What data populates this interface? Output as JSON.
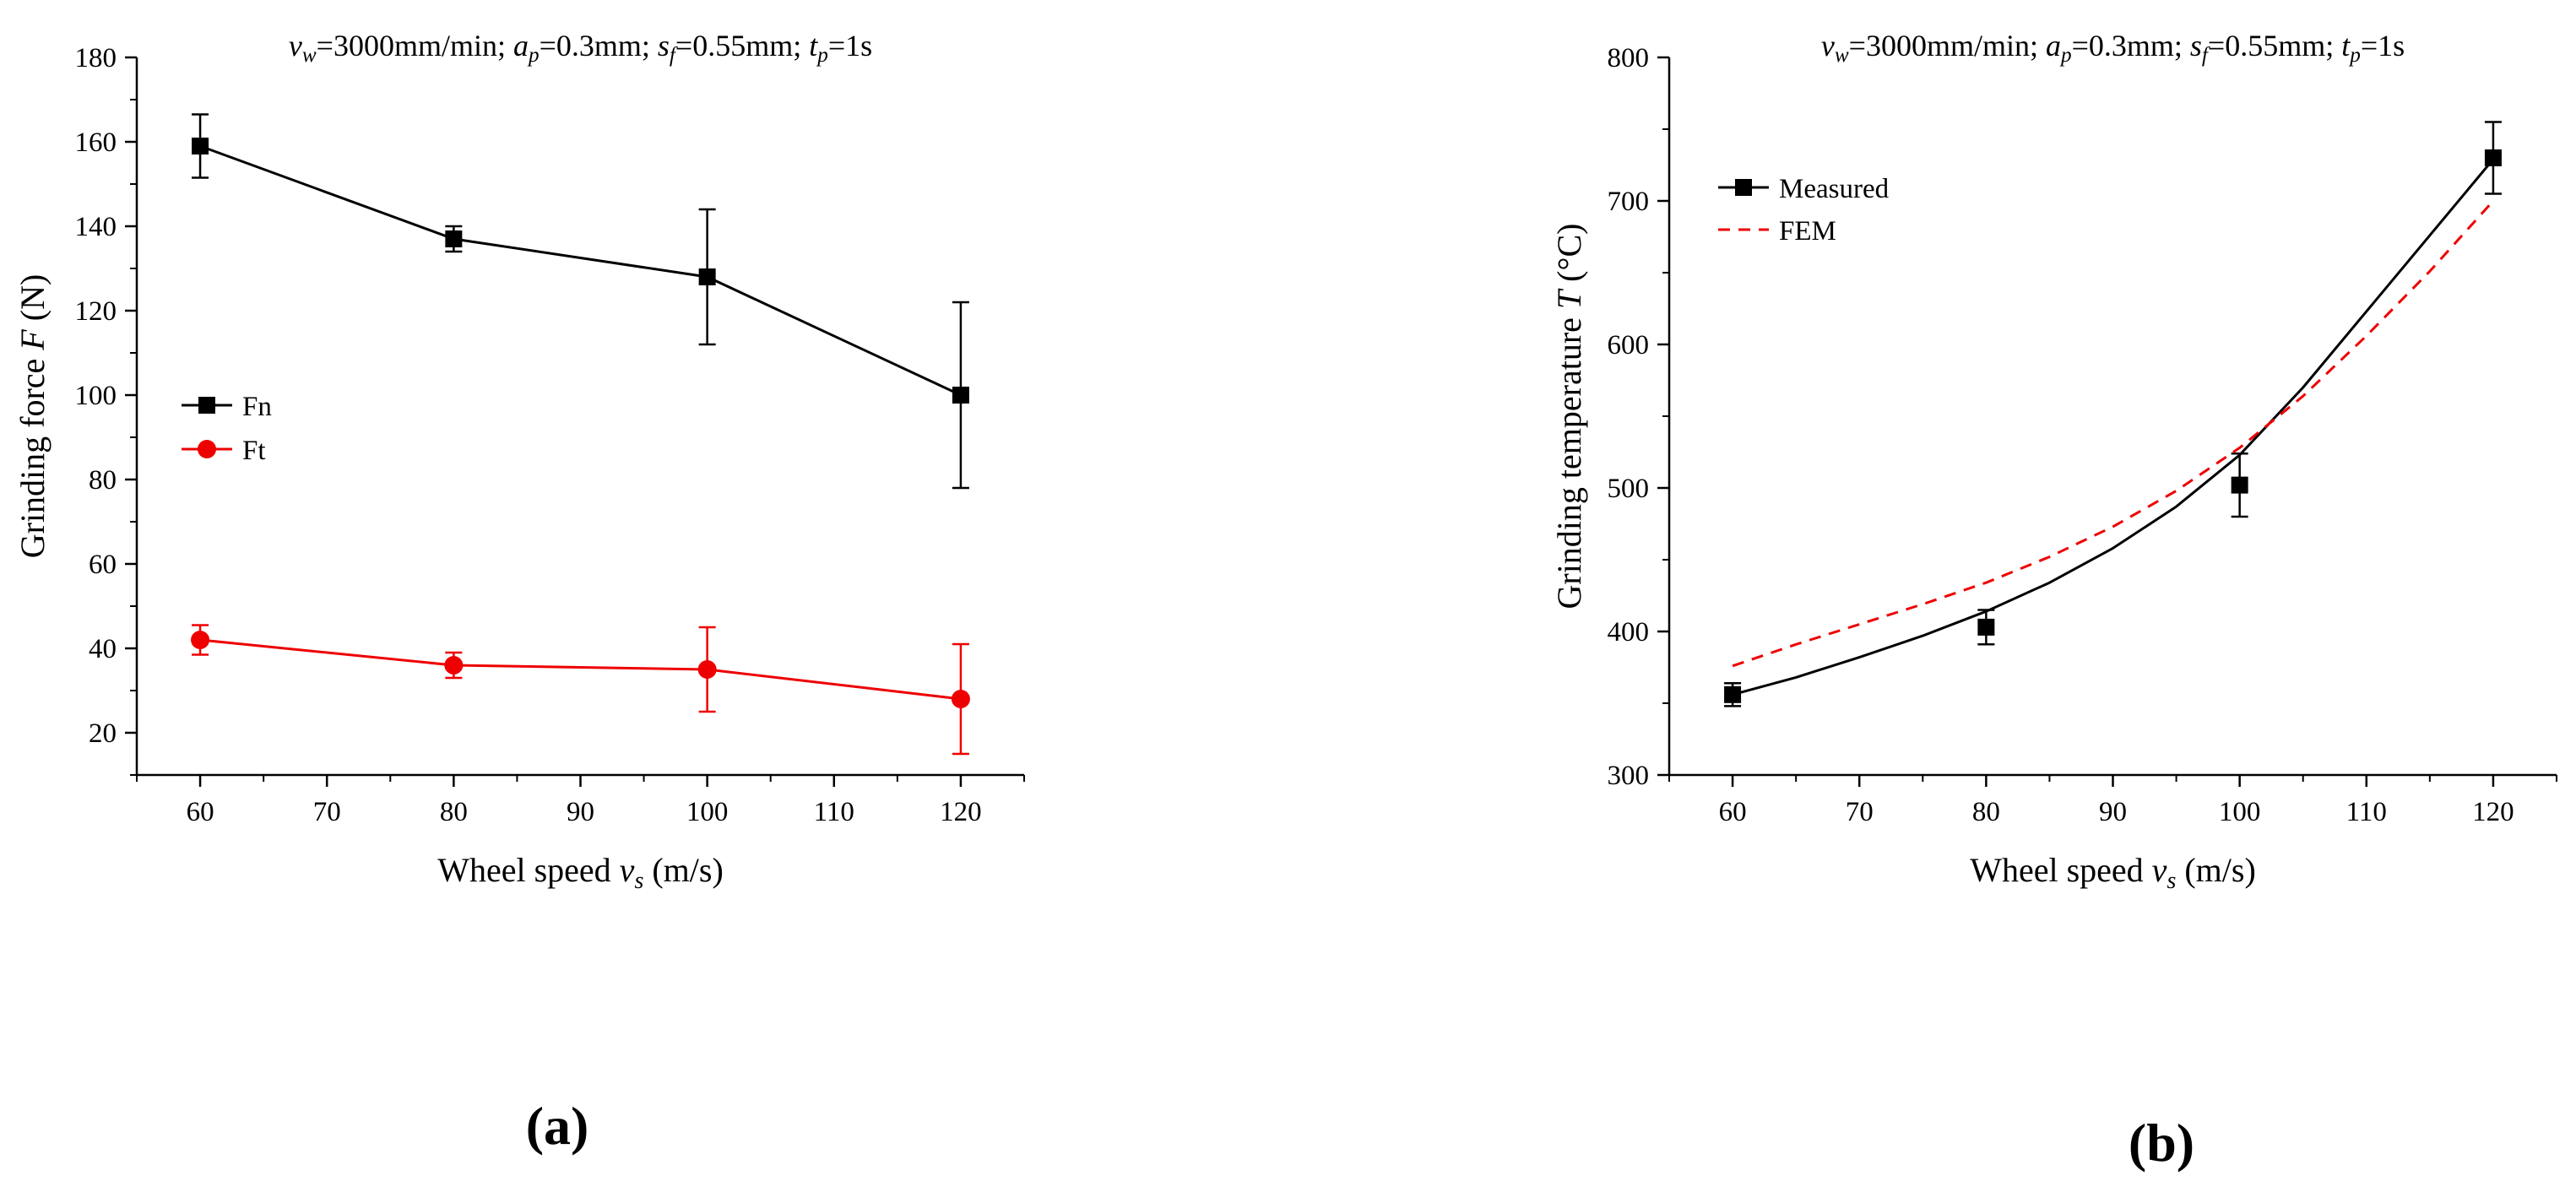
{
  "chart_data": [
    {
      "type": "line",
      "panel_label": "(a)",
      "title": {
        "parts": [
          {
            "text": "v",
            "italic": true
          },
          {
            "text": "w",
            "italic": true,
            "sub": true
          },
          {
            "text": "=3000mm/min; "
          },
          {
            "text": "a",
            "italic": true
          },
          {
            "text": "p",
            "italic": true,
            "sub": true
          },
          {
            "text": "=0.3mm; "
          },
          {
            "text": "s",
            "italic": true
          },
          {
            "text": "f",
            "italic": true,
            "sub": true
          },
          {
            "text": "=0.55mm; "
          },
          {
            "text": "t",
            "italic": true
          },
          {
            "text": "p",
            "italic": true,
            "sub": true
          },
          {
            "text": "=1s"
          }
        ]
      },
      "xlabel": {
        "parts": [
          {
            "text": "Wheel speed "
          },
          {
            "text": "v",
            "italic": true
          },
          {
            "text": "s",
            "italic": true,
            "sub": true
          },
          {
            "text": " (m/s)"
          }
        ]
      },
      "ylabel": {
        "parts": [
          {
            "text": "Grinding force "
          },
          {
            "text": "F",
            "italic": true
          },
          {
            "text": " (N)"
          }
        ]
      },
      "xlim": [
        55,
        125
      ],
      "ylim": [
        10,
        180
      ],
      "xticks": [
        60,
        70,
        80,
        90,
        100,
        110,
        120
      ],
      "yticks": [
        20,
        40,
        60,
        80,
        100,
        120,
        140,
        160,
        180
      ],
      "legend_position": "center-left",
      "series": [
        {
          "name": "Fn",
          "color": "#000000",
          "marker": "square",
          "line": "solid",
          "x": [
            60,
            80,
            100,
            120
          ],
          "y": [
            159,
            137,
            128,
            100
          ],
          "err": [
            7.5,
            3,
            16,
            22
          ]
        },
        {
          "name": "Ft",
          "color": "#ee0000",
          "marker": "circle",
          "line": "solid",
          "x": [
            60,
            80,
            100,
            120
          ],
          "y": [
            42,
            36,
            35,
            28
          ],
          "err": [
            3.5,
            3,
            10,
            13
          ]
        }
      ]
    },
    {
      "type": "line",
      "panel_label": "(b)",
      "title": {
        "parts": [
          {
            "text": "v",
            "italic": true
          },
          {
            "text": "w",
            "italic": true,
            "sub": true
          },
          {
            "text": "=3000mm/min; "
          },
          {
            "text": "a",
            "italic": true
          },
          {
            "text": "p",
            "italic": true,
            "sub": true
          },
          {
            "text": "=0.3mm; "
          },
          {
            "text": "s",
            "italic": true
          },
          {
            "text": "f",
            "italic": true,
            "sub": true
          },
          {
            "text": "=0.55mm; "
          },
          {
            "text": "t",
            "italic": true
          },
          {
            "text": "p",
            "italic": true,
            "sub": true
          },
          {
            "text": "=1s"
          }
        ]
      },
      "xlabel": {
        "parts": [
          {
            "text": "Wheel speed "
          },
          {
            "text": "v",
            "italic": true
          },
          {
            "text": "s",
            "italic": true,
            "sub": true
          },
          {
            "text": " (m/s)"
          }
        ]
      },
      "ylabel": {
        "parts": [
          {
            "text": "Grinding temperature "
          },
          {
            "text": "T",
            "italic": true
          },
          {
            "text": " (°C)"
          }
        ]
      },
      "xlim": [
        55,
        125
      ],
      "ylim": [
        300,
        800
      ],
      "xticks": [
        60,
        70,
        80,
        90,
        100,
        110,
        120
      ],
      "yticks": [
        300,
        400,
        500,
        600,
        700,
        800
      ],
      "legend_position": "top-left",
      "series": [
        {
          "name": "Measured",
          "color": "#000000",
          "marker": "square",
          "line": "solid",
          "points_x": [
            60,
            80,
            100,
            120
          ],
          "points_y": [
            356,
            403,
            502,
            730
          ],
          "err": [
            8,
            12,
            22,
            25
          ],
          "curve_x": [
            60,
            65,
            70,
            75,
            80,
            85,
            90,
            95,
            100,
            105,
            110,
            115,
            120
          ],
          "curve_y": [
            356,
            368,
            382,
            397,
            414,
            434,
            458,
            487,
            523,
            570,
            623,
            676,
            729
          ]
        },
        {
          "name": "FEM",
          "color": "#ee0000",
          "marker": "none",
          "line": "dashed",
          "curve_x": [
            60,
            65,
            70,
            75,
            80,
            85,
            90,
            95,
            100,
            105,
            110,
            115,
            120
          ],
          "curve_y": [
            376,
            391,
            405,
            419,
            434,
            452,
            473,
            498,
            528,
            564,
            606,
            651,
            700
          ]
        }
      ]
    }
  ]
}
